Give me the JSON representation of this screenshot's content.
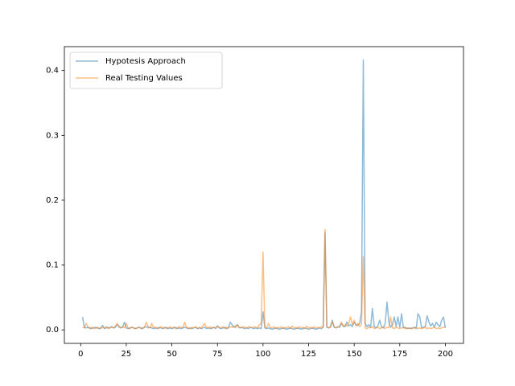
{
  "chart_data": {
    "type": "line",
    "x": [
      1,
      2,
      3,
      4,
      5,
      6,
      7,
      8,
      9,
      10,
      11,
      12,
      13,
      14,
      15,
      16,
      17,
      18,
      19,
      20,
      21,
      22,
      23,
      24,
      25,
      26,
      27,
      28,
      29,
      30,
      31,
      32,
      33,
      34,
      35,
      36,
      37,
      38,
      39,
      40,
      41,
      42,
      43,
      44,
      45,
      46,
      47,
      48,
      49,
      50,
      51,
      52,
      53,
      54,
      55,
      56,
      57,
      58,
      59,
      60,
      61,
      62,
      63,
      64,
      65,
      66,
      67,
      68,
      69,
      70,
      71,
      72,
      73,
      74,
      75,
      76,
      77,
      78,
      79,
      80,
      81,
      82,
      83,
      84,
      85,
      86,
      87,
      88,
      89,
      90,
      91,
      92,
      93,
      94,
      95,
      96,
      97,
      98,
      99,
      100,
      101,
      102,
      103,
      104,
      105,
      106,
      107,
      108,
      109,
      110,
      111,
      112,
      113,
      114,
      115,
      116,
      117,
      118,
      119,
      120,
      121,
      122,
      123,
      124,
      125,
      126,
      127,
      128,
      129,
      130,
      131,
      132,
      133,
      134,
      135,
      136,
      137,
      138,
      139,
      140,
      141,
      142,
      143,
      144,
      145,
      146,
      147,
      148,
      149,
      150,
      151,
      152,
      153,
      154,
      155,
      156,
      157,
      158,
      159,
      160,
      161,
      162,
      163,
      164,
      165,
      166,
      167,
      168,
      169,
      170,
      171,
      172,
      173,
      174,
      175,
      176,
      177,
      178,
      179,
      180,
      181,
      182,
      183,
      184,
      185,
      186,
      187,
      188,
      189,
      190,
      191,
      192,
      193,
      194,
      195,
      196,
      197,
      198,
      199,
      200
    ],
    "series": [
      {
        "name": "Hypotesis Approach",
        "color": "#1f77b4",
        "values": [
          0.02,
          0.004,
          0.003,
          0.004,
          0.003,
          0.002,
          0.003,
          0.004,
          0.003,
          0.002,
          0.003,
          0.007,
          0.002,
          0.003,
          0.004,
          0.003,
          0.005,
          0.003,
          0.004,
          0.008,
          0.006,
          0.003,
          0.004,
          0.012,
          0.003,
          0.002,
          0.003,
          0.004,
          0.003,
          0.002,
          0.003,
          0.004,
          0.003,
          0.002,
          0.004,
          0.005,
          0.003,
          0.004,
          0.003,
          0.002,
          0.003,
          0.002,
          0.004,
          0.003,
          0.002,
          0.003,
          0.004,
          0.002,
          0.003,
          0.002,
          0.003,
          0.004,
          0.002,
          0.003,
          0.002,
          0.003,
          0.004,
          0.003,
          0.002,
          0.003,
          0.002,
          0.003,
          0.004,
          0.002,
          0.003,
          0.002,
          0.003,
          0.004,
          0.002,
          0.003,
          0.002,
          0.003,
          0.004,
          0.002,
          0.006,
          0.003,
          0.002,
          0.003,
          0.004,
          0.002,
          0.003,
          0.012,
          0.008,
          0.004,
          0.006,
          0.008,
          0.003,
          0.004,
          0.003,
          0.002,
          0.003,
          0.002,
          0.004,
          0.003,
          0.002,
          0.003,
          0.002,
          0.003,
          0.002,
          0.028,
          0.003,
          0.002,
          0.003,
          0.002,
          0.001,
          0.002,
          0.003,
          0.002,
          0.001,
          0.002,
          0.003,
          0.002,
          0.001,
          0.002,
          0.003,
          0.002,
          0.001,
          0.002,
          0.003,
          0.002,
          0.001,
          0.002,
          0.003,
          0.002,
          0.001,
          0.002,
          0.003,
          0.002,
          0.001,
          0.002,
          0.003,
          0.002,
          0.004,
          0.15,
          0.004,
          0.003,
          0.005,
          0.015,
          0.004,
          0.003,
          0.005,
          0.004,
          0.01,
          0.006,
          0.005,
          0.012,
          0.006,
          0.008,
          0.005,
          0.012,
          0.008,
          0.007,
          0.01,
          0.028,
          0.416,
          0.01,
          0.005,
          0.008,
          0.004,
          0.033,
          0.005,
          0.003,
          0.006,
          0.015,
          0.004,
          0.003,
          0.01,
          0.043,
          0.012,
          0.004,
          0.008,
          0.02,
          0.005,
          0.02,
          0.004,
          0.025,
          0.003,
          0.004,
          0.002,
          0.003,
          0.002,
          0.003,
          0.004,
          0.002,
          0.025,
          0.02,
          0.003,
          0.004,
          0.005,
          0.022,
          0.012,
          0.006,
          0.01,
          0.004,
          0.012,
          0.008,
          0.005,
          0.015,
          0.02,
          0.003
        ]
      },
      {
        "name": "Real Testing Values",
        "color": "#ff7f0e",
        "values": [
          0.004,
          0.003,
          0.01,
          0.004,
          0.002,
          0.004,
          0.003,
          0.002,
          0.004,
          0.003,
          0.002,
          0.004,
          0.003,
          0.005,
          0.002,
          0.003,
          0.004,
          0.003,
          0.006,
          0.01,
          0.004,
          0.003,
          0.005,
          0.003,
          0.01,
          0.003,
          0.002,
          0.004,
          0.003,
          0.002,
          0.003,
          0.004,
          0.002,
          0.003,
          0.004,
          0.012,
          0.005,
          0.003,
          0.01,
          0.003,
          0.004,
          0.003,
          0.002,
          0.005,
          0.003,
          0.004,
          0.002,
          0.003,
          0.005,
          0.003,
          0.004,
          0.002,
          0.003,
          0.005,
          0.004,
          0.003,
          0.012,
          0.004,
          0.003,
          0.002,
          0.004,
          0.003,
          0.005,
          0.002,
          0.004,
          0.003,
          0.006,
          0.01,
          0.004,
          0.003,
          0.005,
          0.002,
          0.004,
          0.003,
          0.006,
          0.004,
          0.003,
          0.005,
          0.002,
          0.004,
          0.003,
          0.005,
          0.004,
          0.006,
          0.003,
          0.008,
          0.004,
          0.003,
          0.005,
          0.004,
          0.003,
          0.005,
          0.004,
          0.003,
          0.005,
          0.004,
          0.003,
          0.008,
          0.01,
          0.12,
          0.004,
          0.003,
          0.01,
          0.004,
          0.003,
          0.005,
          0.002,
          0.004,
          0.003,
          0.005,
          0.002,
          0.004,
          0.003,
          0.005,
          0.002,
          0.006,
          0.003,
          0.004,
          0.002,
          0.005,
          0.003,
          0.004,
          0.002,
          0.006,
          0.003,
          0.004,
          0.002,
          0.005,
          0.003,
          0.004,
          0.003,
          0.005,
          0.004,
          0.155,
          0.005,
          0.003,
          0.004,
          0.012,
          0.005,
          0.003,
          0.004,
          0.006,
          0.012,
          0.005,
          0.008,
          0.006,
          0.01,
          0.02,
          0.008,
          0.015,
          0.006,
          0.01,
          0.005,
          0.008,
          0.113,
          0.003,
          0.002,
          0.004,
          0.003,
          0.005,
          0.002,
          0.003,
          0.004,
          0.002,
          0.003,
          0.005,
          0.002,
          0.004,
          0.003,
          0.02,
          0.003,
          0.002,
          0.004,
          0.003,
          0.002,
          0.003,
          0.004,
          0.002,
          0.003,
          0.002,
          0.003,
          0.002,
          0.003,
          0.004,
          0.002,
          0.003,
          0.002,
          0.003,
          0.004,
          0.002,
          0.003,
          0.002,
          0.003,
          0.004,
          0.002,
          0.003,
          0.002,
          0.003,
          0.004,
          0.005
        ]
      }
    ],
    "xlim": [
      -8.95,
      209.95
    ],
    "xticks": [
      0,
      25,
      50,
      75,
      100,
      125,
      150,
      175,
      200
    ],
    "ylim": [
      -0.0208,
      0.4368
    ],
    "yticks": [
      {
        "value": 0,
        "label": "0.0"
      },
      0.1,
      0.2,
      0.3,
      0.4
    ],
    "legend": "upper left"
  }
}
